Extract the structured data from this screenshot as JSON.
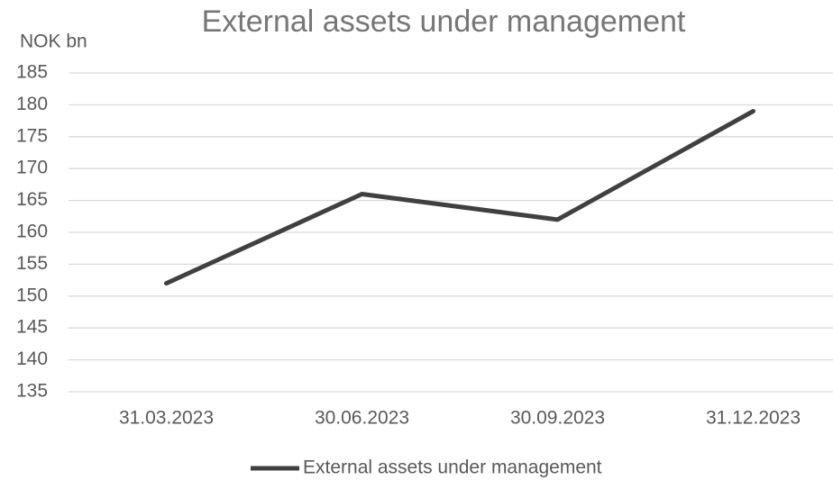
{
  "chart_data": {
    "type": "line",
    "title": "External assets under management",
    "y_label": "NOK bn",
    "categories": [
      "31.03.2023",
      "30.06.2023",
      "30.09.2023",
      "31.12.2023"
    ],
    "series": [
      {
        "name": "External assets under management",
        "color": "#404040",
        "values": [
          152,
          166,
          162,
          179
        ]
      }
    ],
    "ylim": [
      135,
      185
    ],
    "yticks": [
      135,
      140,
      145,
      150,
      155,
      160,
      165,
      170,
      175,
      180,
      185
    ],
    "grid": true,
    "legend": "bottom"
  }
}
